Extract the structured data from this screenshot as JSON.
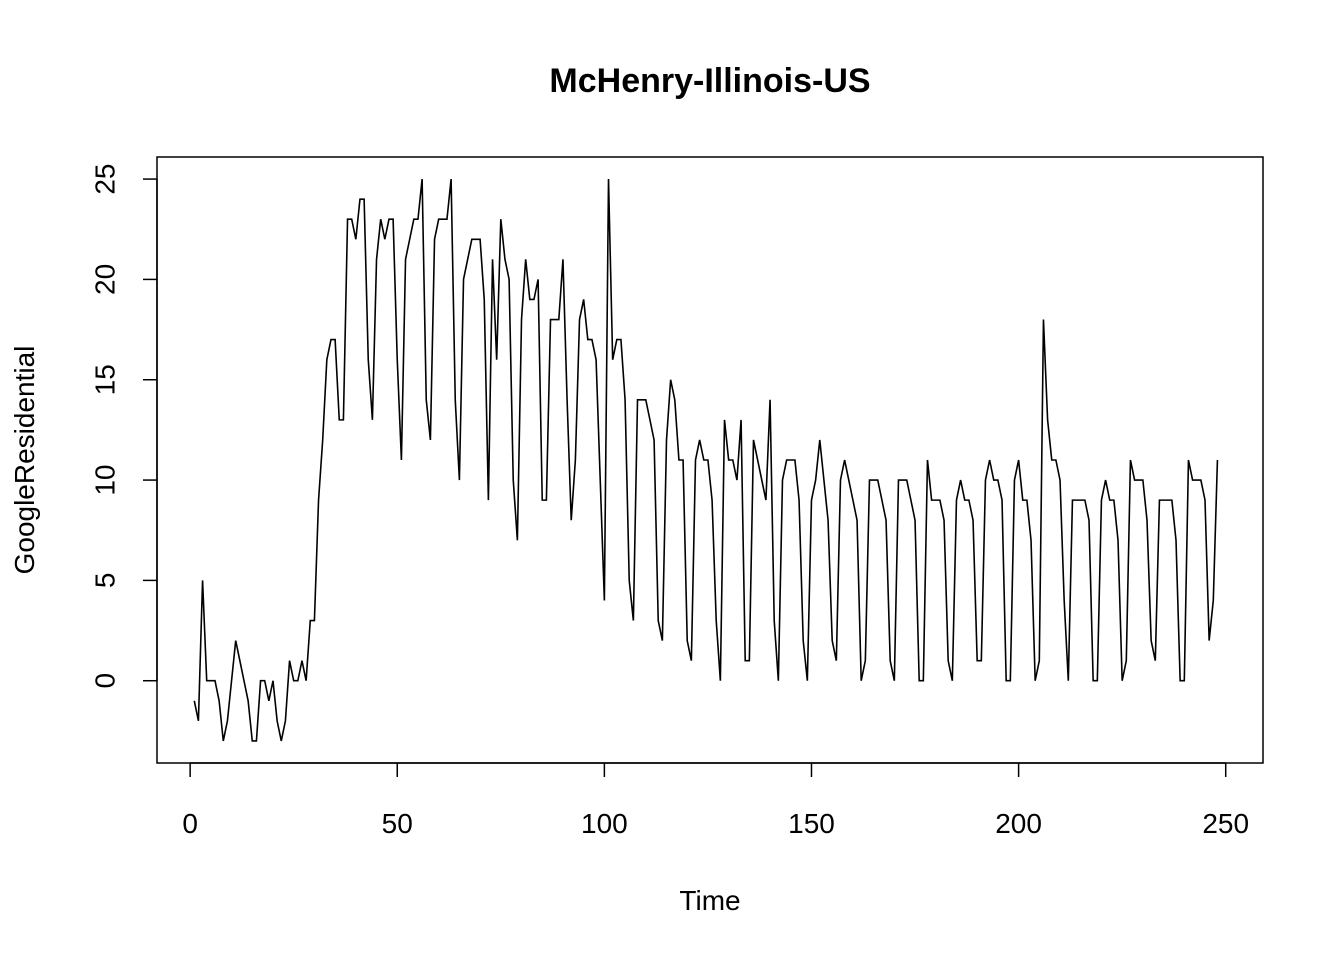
{
  "chart_data": {
    "type": "line",
    "title": "McHenry-Illinois-US",
    "xlabel": "Time",
    "ylabel": "GoogleResidential",
    "xlim": [
      -8,
      259
    ],
    "ylim": [
      -4.1,
      26.1
    ],
    "xticks": [
      0,
      50,
      100,
      150,
      200,
      250
    ],
    "yticks": [
      0,
      5,
      10,
      15,
      20,
      25
    ],
    "xtick_labels": [
      "0",
      "50",
      "100",
      "150",
      "200",
      "250"
    ],
    "ytick_labels": [
      "0",
      "5",
      "10",
      "15",
      "20",
      "25"
    ],
    "grid": false,
    "series": [
      {
        "values": [
          -1,
          -2,
          5,
          0,
          0,
          0,
          -1,
          -3,
          -2,
          0,
          2,
          1,
          0,
          -1,
          -3,
          -3,
          0,
          0,
          -1,
          0,
          -2,
          -3,
          -2,
          1,
          0,
          0,
          1,
          0,
          3,
          3,
          9,
          12,
          16,
          17,
          17,
          13,
          13,
          23,
          23,
          22,
          24,
          24,
          16,
          13,
          21,
          23,
          22,
          23,
          23,
          16,
          11,
          21,
          22,
          23,
          23,
          25,
          14,
          12,
          22,
          23,
          23,
          23,
          25,
          14,
          10,
          20,
          21,
          22,
          22,
          22,
          19,
          9,
          21,
          16,
          23,
          21,
          20,
          10,
          7,
          18,
          21,
          19,
          19,
          20,
          9,
          9,
          18,
          18,
          18,
          21,
          14,
          8,
          11,
          18,
          19,
          17,
          17,
          16,
          10,
          4,
          25,
          16,
          17,
          17,
          14,
          5,
          3,
          14,
          14,
          14,
          13,
          12,
          3,
          2,
          12,
          15,
          14,
          11,
          11,
          2,
          1,
          11,
          12,
          11,
          11,
          9,
          3,
          0,
          13,
          11,
          11,
          10,
          13,
          1,
          1,
          12,
          11,
          10,
          9,
          14,
          3,
          0,
          10,
          11,
          11,
          11,
          9,
          2,
          0,
          9,
          10,
          12,
          10,
          8,
          2,
          1,
          10,
          11,
          10,
          9,
          8,
          0,
          1,
          10,
          10,
          10,
          9,
          8,
          1,
          0,
          10,
          10,
          10,
          9,
          8,
          0,
          0,
          11,
          9,
          9,
          9,
          8,
          1,
          0,
          9,
          10,
          9,
          9,
          8,
          1,
          1,
          10,
          11,
          10,
          10,
          9,
          0,
          0,
          10,
          11,
          9,
          9,
          7,
          0,
          1,
          18,
          13,
          11,
          11,
          10,
          4,
          0,
          9,
          9,
          9,
          9,
          8,
          0,
          0,
          9,
          10,
          9,
          9,
          7,
          0,
          1,
          11,
          10,
          10,
          10,
          8,
          2,
          1,
          9,
          9,
          9,
          9,
          7,
          0,
          0,
          11,
          10,
          10,
          10,
          9,
          2,
          4,
          11
        ]
      }
    ]
  }
}
